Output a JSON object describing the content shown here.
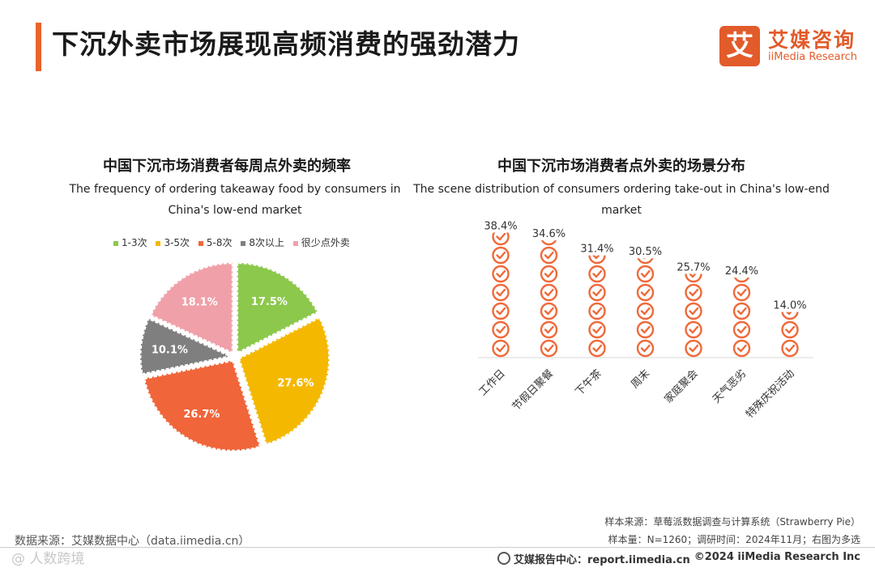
{
  "page": {
    "title": "下沉外卖市场展现高频消费的强劲潜力"
  },
  "logo": {
    "mark": "艾",
    "cn": "艾媒咨询",
    "en": "iiMedia Research"
  },
  "colors": {
    "accent": "#e8632c",
    "pie": [
      "#8cc84b",
      "#f5b800",
      "#f0653a",
      "#7f7f7f",
      "#f0a0a8"
    ],
    "pictogram": "#ef6a3a"
  },
  "chart_data": [
    {
      "type": "pie",
      "title": "中国下沉市场消费者每周点外卖的频率",
      "subtitle_lines": [
        "The frequency of ordering takeaway food by consumers in",
        "China's low-end market"
      ],
      "legend_position": "top",
      "slices": [
        {
          "label": "1-3次",
          "value": 17.5,
          "display": "17.5%"
        },
        {
          "label": "3-5次",
          "value": 27.6,
          "display": "27.6%"
        },
        {
          "label": "5-8次",
          "value": 26.7,
          "display": "26.7%"
        },
        {
          "label": "8次以上",
          "value": 10.1,
          "display": "10.1%"
        },
        {
          "label": "很少点外卖",
          "value": 18.1,
          "display": "18.1%"
        }
      ]
    },
    {
      "type": "bar",
      "style": "pictogram",
      "icon": "check-circle-icon",
      "title": "中国下沉市场消费者点外卖的场景分布",
      "subtitle_lines": [
        "The scene distribution of consumers ordering take-out in China's low-end",
        "market"
      ],
      "categories": [
        "工作日",
        "节假日聚餐",
        "下午茶",
        "周末",
        "家庭聚会",
        "天气恶劣",
        "特殊庆祝活动"
      ],
      "values": [
        38.4,
        34.6,
        31.4,
        30.5,
        25.7,
        24.4,
        14.0
      ],
      "labels": [
        "38.4%",
        "34.6%",
        "31.4%",
        "30.5%",
        "25.7%",
        "24.4%",
        "14.0%"
      ],
      "ylim": [
        0,
        40
      ]
    }
  ],
  "footer": {
    "source_left": "数据来源：艾媒数据中心（data.iimedia.cn）",
    "source_right_1": "样本来源：草莓派数据调查与计算系统（Strawberry Pie）",
    "source_right_2": "样本量：N=1260；调研时间：2024年11月；右图为多选",
    "report_center": "艾媒报告中心：report.iimedia.cn",
    "copyright": "©2024  iiMedia Research  Inc",
    "watermark": "@ 人数跨境"
  }
}
